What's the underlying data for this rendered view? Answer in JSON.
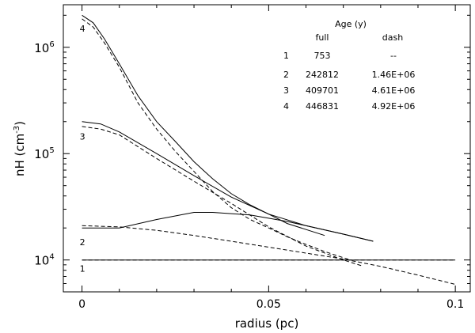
{
  "chart_data": {
    "type": "line",
    "xlabel": "radius (pc)",
    "ylabel": "nH (cm",
    "ylabel_sup": "-3",
    "ylabel_close": ")",
    "xlim": [
      -0.005,
      0.104
    ],
    "ylim_log10": [
      3.7,
      6.4
    ],
    "y_scale": "log",
    "grid": false,
    "x_ticks": [
      {
        "value": 0,
        "label": "0"
      },
      {
        "value": 0.05,
        "label": "0.05"
      },
      {
        "value": 0.1,
        "label": "0.1"
      }
    ],
    "y_ticks": [
      {
        "value": 10000,
        "base": "10",
        "exp": "4"
      },
      {
        "value": 100000,
        "base": "10",
        "exp": "5"
      },
      {
        "value": 1000000,
        "base": "10",
        "exp": "6"
      }
    ],
    "table": {
      "title": "Age (y)",
      "col_full": "full",
      "col_dash": "dash",
      "rows": [
        {
          "id": "1",
          "full": "753",
          "dash": "--"
        },
        {
          "id": "2",
          "full": "242812",
          "dash": "1.46E+06"
        },
        {
          "id": "3",
          "full": "409701",
          "dash": "4.61E+06"
        },
        {
          "id": "4",
          "full": "446831",
          "dash": "4.92E+06"
        }
      ]
    },
    "curve_labels": [
      {
        "id": "1",
        "x": 0.0,
        "y": 8300
      },
      {
        "id": "2",
        "x": 0.0,
        "y": 14800
      },
      {
        "id": "3",
        "x": 0.0,
        "y": 145000
      },
      {
        "id": "4",
        "x": 0.0,
        "y": 1500000
      }
    ],
    "series": [
      {
        "style": "solid",
        "x": [
          0,
          0.1
        ],
        "y": [
          10000,
          10000
        ]
      },
      {
        "style": "dash",
        "x": [
          0,
          0.1
        ],
        "y": [
          10000,
          10000
        ]
      },
      {
        "style": "solid",
        "x": [
          0,
          0.01,
          0.02,
          0.03,
          0.035,
          0.045,
          0.055,
          0.07,
          0.078
        ],
        "y": [
          20000,
          20000,
          24000,
          28000,
          28000,
          26500,
          23000,
          17500,
          15000
        ]
      },
      {
        "style": "dash",
        "x": [
          0,
          0.01,
          0.02,
          0.03,
          0.04,
          0.05,
          0.06,
          0.07,
          0.08,
          0.09,
          0.1
        ],
        "y": [
          21000,
          20500,
          19000,
          17000,
          15000,
          13200,
          11600,
          10200,
          8700,
          7200,
          5900
        ]
      },
      {
        "style": "solid",
        "x": [
          0,
          0.005,
          0.01,
          0.02,
          0.03,
          0.04,
          0.05,
          0.06,
          0.07,
          0.078
        ],
        "y": [
          200000,
          190000,
          160000,
          100000,
          62000,
          39000,
          27000,
          21000,
          17500,
          15000
        ]
      },
      {
        "style": "dash",
        "x": [
          0,
          0.005,
          0.01,
          0.02,
          0.03,
          0.04,
          0.05,
          0.06,
          0.07,
          0.075
        ],
        "y": [
          180000,
          170000,
          150000,
          90000,
          55000,
          34000,
          20500,
          13500,
          10000,
          8800
        ]
      },
      {
        "style": "solid",
        "x": [
          0,
          0.003,
          0.006,
          0.01,
          0.015,
          0.02,
          0.025,
          0.03,
          0.035,
          0.04,
          0.045,
          0.05,
          0.055,
          0.065
        ],
        "y": [
          2000000,
          1700000,
          1200000,
          700000,
          350000,
          200000,
          130000,
          84000,
          58000,
          42000,
          33000,
          27000,
          22000,
          17000
        ]
      },
      {
        "style": "dash",
        "x": [
          0,
          0.003,
          0.006,
          0.01,
          0.015,
          0.02,
          0.025,
          0.03,
          0.035,
          0.04,
          0.045,
          0.05,
          0.055,
          0.06,
          0.065,
          0.07,
          0.072
        ],
        "y": [
          1850000,
          1550000,
          1100000,
          650000,
          300000,
          170000,
          105000,
          68000,
          44000,
          31000,
          24000,
          20000,
          16500,
          14000,
          12000,
          10500,
          10000
        ]
      }
    ]
  }
}
